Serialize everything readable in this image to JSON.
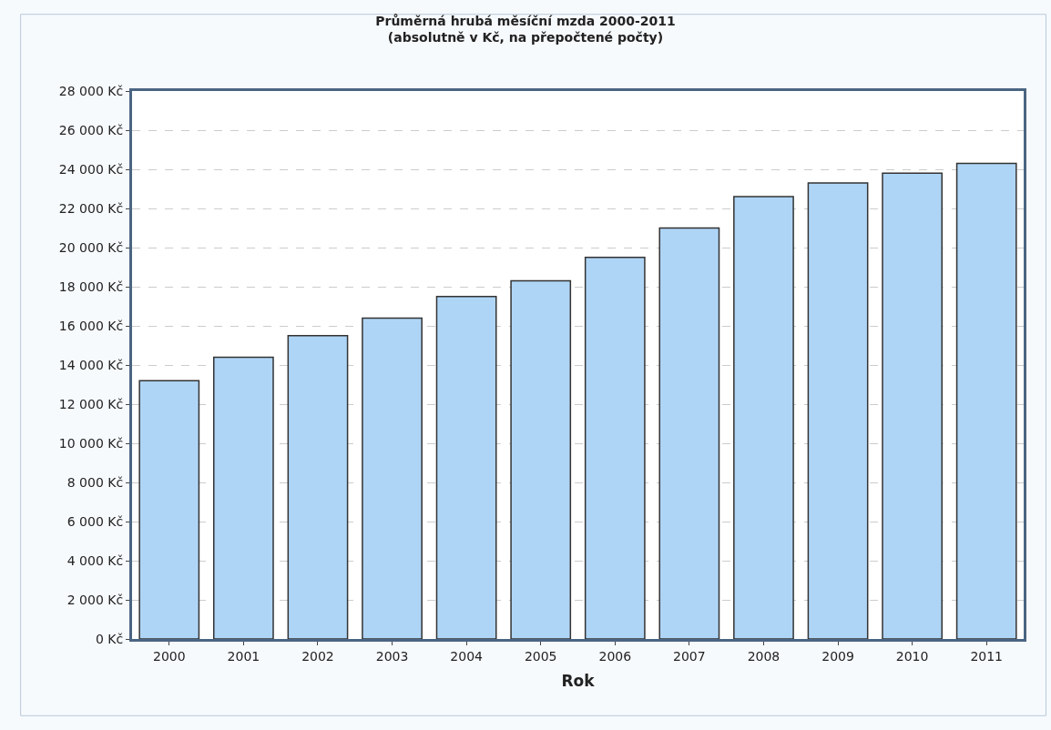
{
  "chart_data": {
    "type": "bar",
    "title": "Průměrná hrubá měsíční mzda 2000-2011",
    "subtitle": "(absolutně v Kč, na přepočtené počty)",
    "xlabel": "Rok",
    "categories": [
      "2000",
      "2001",
      "2002",
      "2003",
      "2004",
      "2005",
      "2006",
      "2007",
      "2008",
      "2009",
      "2010",
      "2011"
    ],
    "values": [
      13200,
      14400,
      15500,
      16400,
      17500,
      18300,
      19500,
      21000,
      22600,
      23300,
      23800,
      24300
    ],
    "color": "#afd5f6",
    "ylim": [
      0,
      28000
    ],
    "yticks": [
      {
        "value": 0,
        "label": "0 Kč"
      },
      {
        "value": 2000,
        "label": "2 000 Kč"
      },
      {
        "value": 4000,
        "label": "4 000 Kč"
      },
      {
        "value": 6000,
        "label": "6 000 Kč"
      },
      {
        "value": 8000,
        "label": "8 000 Kč"
      },
      {
        "value": 10000,
        "label": "10 000 Kč"
      },
      {
        "value": 12000,
        "label": "12 000 Kč"
      },
      {
        "value": 14000,
        "label": "14 000 Kč"
      },
      {
        "value": 16000,
        "label": "16 000 Kč"
      },
      {
        "value": 18000,
        "label": "18 000 Kč"
      },
      {
        "value": 20000,
        "label": "20 000 Kč"
      },
      {
        "value": 22000,
        "label": "22 000 Kč"
      },
      {
        "value": 24000,
        "label": "24 000 Kč"
      },
      {
        "value": 26000,
        "label": "26 000 Kč"
      },
      {
        "value": 28000,
        "label": "28 000 Kč"
      }
    ],
    "grid": "y"
  }
}
